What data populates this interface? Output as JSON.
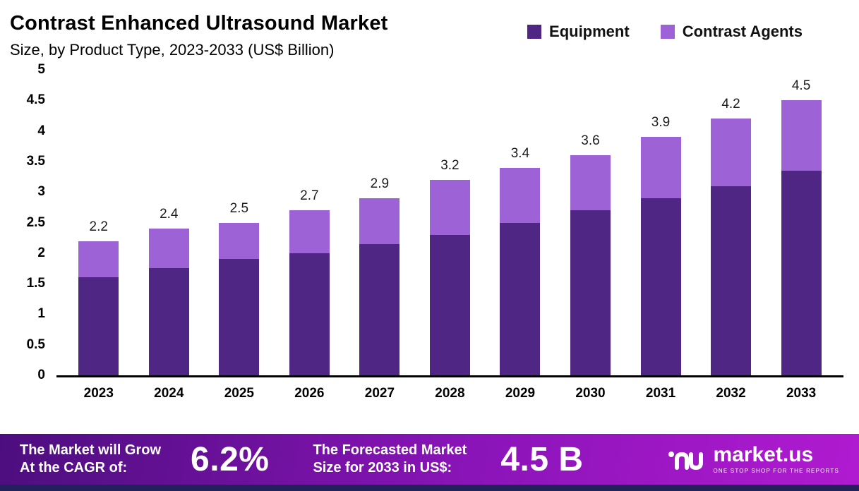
{
  "header": {
    "title": "Contrast Enhanced Ultrasound Market",
    "subtitle": "Size, by Product Type, 2023-2033 (US$ Billion)"
  },
  "legend": [
    {
      "label": "Equipment",
      "color": "#4f2683"
    },
    {
      "label": "Contrast Agents",
      "color": "#9d62d6"
    }
  ],
  "chart_data": {
    "type": "bar",
    "stacked": true,
    "title": "Contrast Enhanced Ultrasound Market Size, by Product Type, 2023-2033 (US$ Billion)",
    "categories": [
      "2023",
      "2024",
      "2025",
      "2026",
      "2027",
      "2028",
      "2029",
      "2030",
      "2031",
      "2032",
      "2033"
    ],
    "series": [
      {
        "name": "Equipment",
        "color": "#4f2683",
        "values": [
          1.6,
          1.75,
          1.9,
          2.0,
          2.15,
          2.3,
          2.5,
          2.7,
          2.9,
          3.1,
          3.35
        ]
      },
      {
        "name": "Contrast Agents",
        "color": "#9d62d6",
        "values": [
          0.6,
          0.65,
          0.6,
          0.7,
          0.75,
          0.9,
          0.9,
          0.9,
          1.0,
          1.1,
          1.15
        ]
      }
    ],
    "totals": [
      2.2,
      2.4,
      2.5,
      2.7,
      2.9,
      3.2,
      3.4,
      3.6,
      3.9,
      4.2,
      4.5
    ],
    "ylim": [
      0,
      5
    ],
    "yticks": [
      5,
      4.5,
      4,
      3.5,
      3,
      2.5,
      2,
      1.5,
      1,
      0.5,
      0
    ],
    "grid": false,
    "legend_position": "top-right"
  },
  "footer": {
    "cagr_label": "The Market will Grow\nAt the CAGR of:",
    "cagr_value": "6.2%",
    "forecast_label": "The Forecasted Market\nSize for 2033 in US$:",
    "forecast_value": "4.5 B",
    "brand": "market.us",
    "brand_tagline": "ONE STOP SHOP FOR THE REPORTS"
  }
}
